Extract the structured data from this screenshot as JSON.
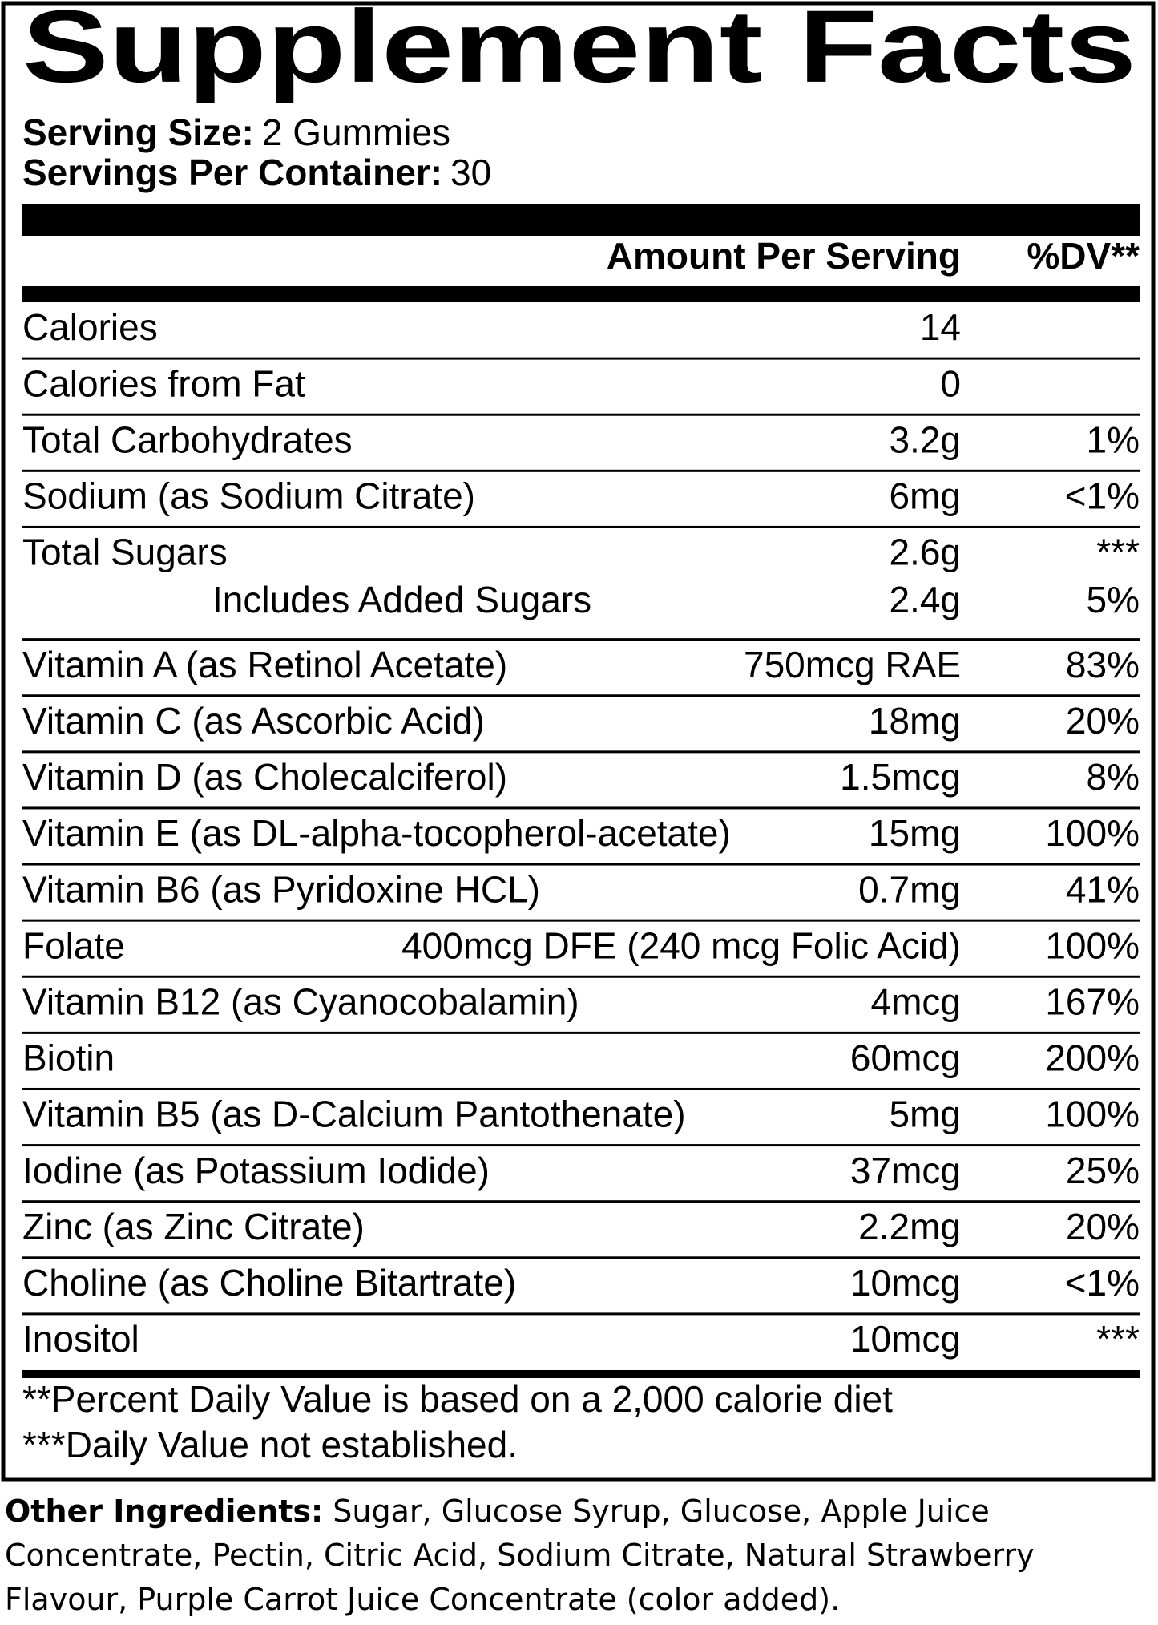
{
  "header": {
    "title": "Supplement Facts",
    "serving_size": {
      "label": "Serving Size:",
      "value": "2 Gummies"
    },
    "servings_per_container": {
      "label": "Servings Per Container:",
      "value": "30"
    }
  },
  "table": {
    "columns": {
      "amount": "Amount Per Serving",
      "dv": "%DV**"
    },
    "rows": [
      {
        "name": "Calories",
        "amount": "14"
      },
      {
        "name": "Calories from Fat",
        "amount": "0"
      },
      {
        "name": "Total Carbohydrates",
        "amount": "3.2g",
        "dv": "1%"
      },
      {
        "name": "Sodium (as Sodium Citrate)",
        "amount": "6mg",
        "dv": "<1%"
      },
      {
        "name": "Total Sugars",
        "amount": "2.6g",
        "dv": "***",
        "sub_rows": [
          {
            "name": "Includes Added Sugars",
            "amount": "2.4g",
            "dv": "5%"
          }
        ]
      },
      {
        "name": "Vitamin A (as Retinol Acetate)",
        "amount": "750mcg RAE",
        "dv": "83%"
      },
      {
        "name": "Vitamin C (as Ascorbic Acid)",
        "amount": "18mg",
        "dv": "20%"
      },
      {
        "name": "Vitamin D (as Cholecalciferol)",
        "amount": "1.5mcg",
        "dv": "8%"
      },
      {
        "name": "Vitamin E (as DL-alpha-tocopherol-acetate)",
        "amount": "15mg",
        "dv": "100%"
      },
      {
        "name": "Vitamin B6 (as Pyridoxine HCL)",
        "amount": "0.7mg",
        "dv": "41%"
      },
      {
        "name": "Folate",
        "amount": "400mcg DFE (240 mcg Folic Acid)",
        "dv": "100%"
      },
      {
        "name": "Vitamin B12 (as Cyanocobalamin)",
        "amount": "4mcg",
        "dv": "167%"
      },
      {
        "name": "Biotin",
        "amount": "60mcg",
        "dv": "200%"
      },
      {
        "name": "Vitamin B5 (as D-Calcium Pantothenate)",
        "amount": "5mg",
        "dv": "100%"
      },
      {
        "name": "Iodine (as Potassium Iodide)",
        "amount": "37mcg",
        "dv": "25%"
      },
      {
        "name": "Zinc (as Zinc Citrate)",
        "amount": "2.2mg",
        "dv": "20%"
      },
      {
        "name": "Choline (as Choline Bitartrate)",
        "amount": "10mcg",
        "dv": "<1%"
      },
      {
        "name": "Inositol",
        "amount": "10mcg",
        "dv": "***"
      }
    ]
  },
  "footnotes": [
    "**Percent Daily Value is based on a 2,000 calorie diet",
    "***Daily Value not established."
  ],
  "other_ingredients": {
    "label": "Other Ingredients:",
    "text": "Sugar, Glucose Syrup, Glucose, Apple Juice Concentrate, Pectin, Citric Acid, Sodium Citrate, Natural Strawberry Flavour, Purple Carrot Juice Concentrate (color added)."
  }
}
